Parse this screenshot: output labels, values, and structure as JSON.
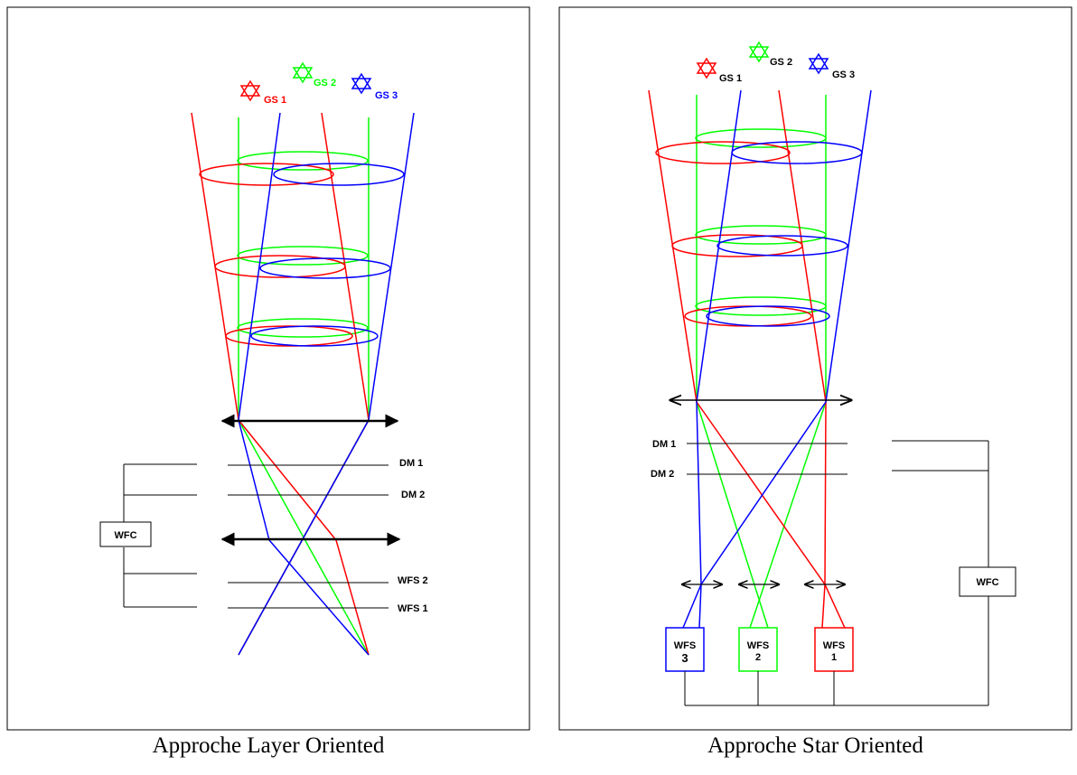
{
  "layer_oriented": {
    "caption": "Approche Layer Oriented",
    "guide_stars": [
      "GS 1",
      "GS 2",
      "GS 3"
    ],
    "dm_labels": [
      "DM 1",
      "DM 2"
    ],
    "wfs_labels": [
      "WFS 2",
      "WFS 1"
    ],
    "controller": "WFC"
  },
  "star_oriented": {
    "caption": "Approche Star Oriented",
    "guide_stars": [
      "GS 1",
      "GS 2",
      "GS 3"
    ],
    "dm_labels": [
      "DM 1",
      "DM 2"
    ],
    "wfs_boxes": [
      {
        "line1": "WFS",
        "line2": "3"
      },
      {
        "line1": "WFS",
        "line2": "2"
      },
      {
        "line1": "WFS",
        "line2": "1"
      }
    ],
    "controller": "WFC"
  },
  "colors": {
    "gs1": "#ff0000",
    "gs2": "#00ff00",
    "gs3": "#0000ff",
    "line": "#000000"
  }
}
